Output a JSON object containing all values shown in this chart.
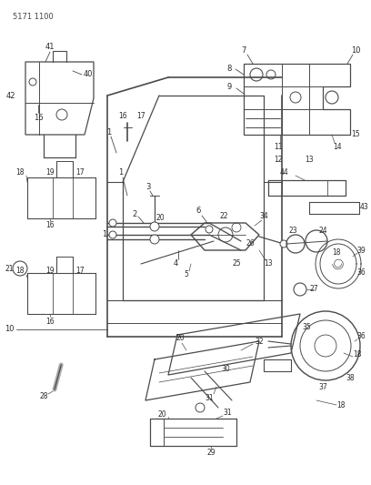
{
  "figure_id": "5171 1100",
  "background_color": "#ffffff",
  "line_color": "#4a4a4a",
  "text_color": "#2a2a2a",
  "figsize": [
    4.08,
    5.33
  ],
  "dpi": 100
}
